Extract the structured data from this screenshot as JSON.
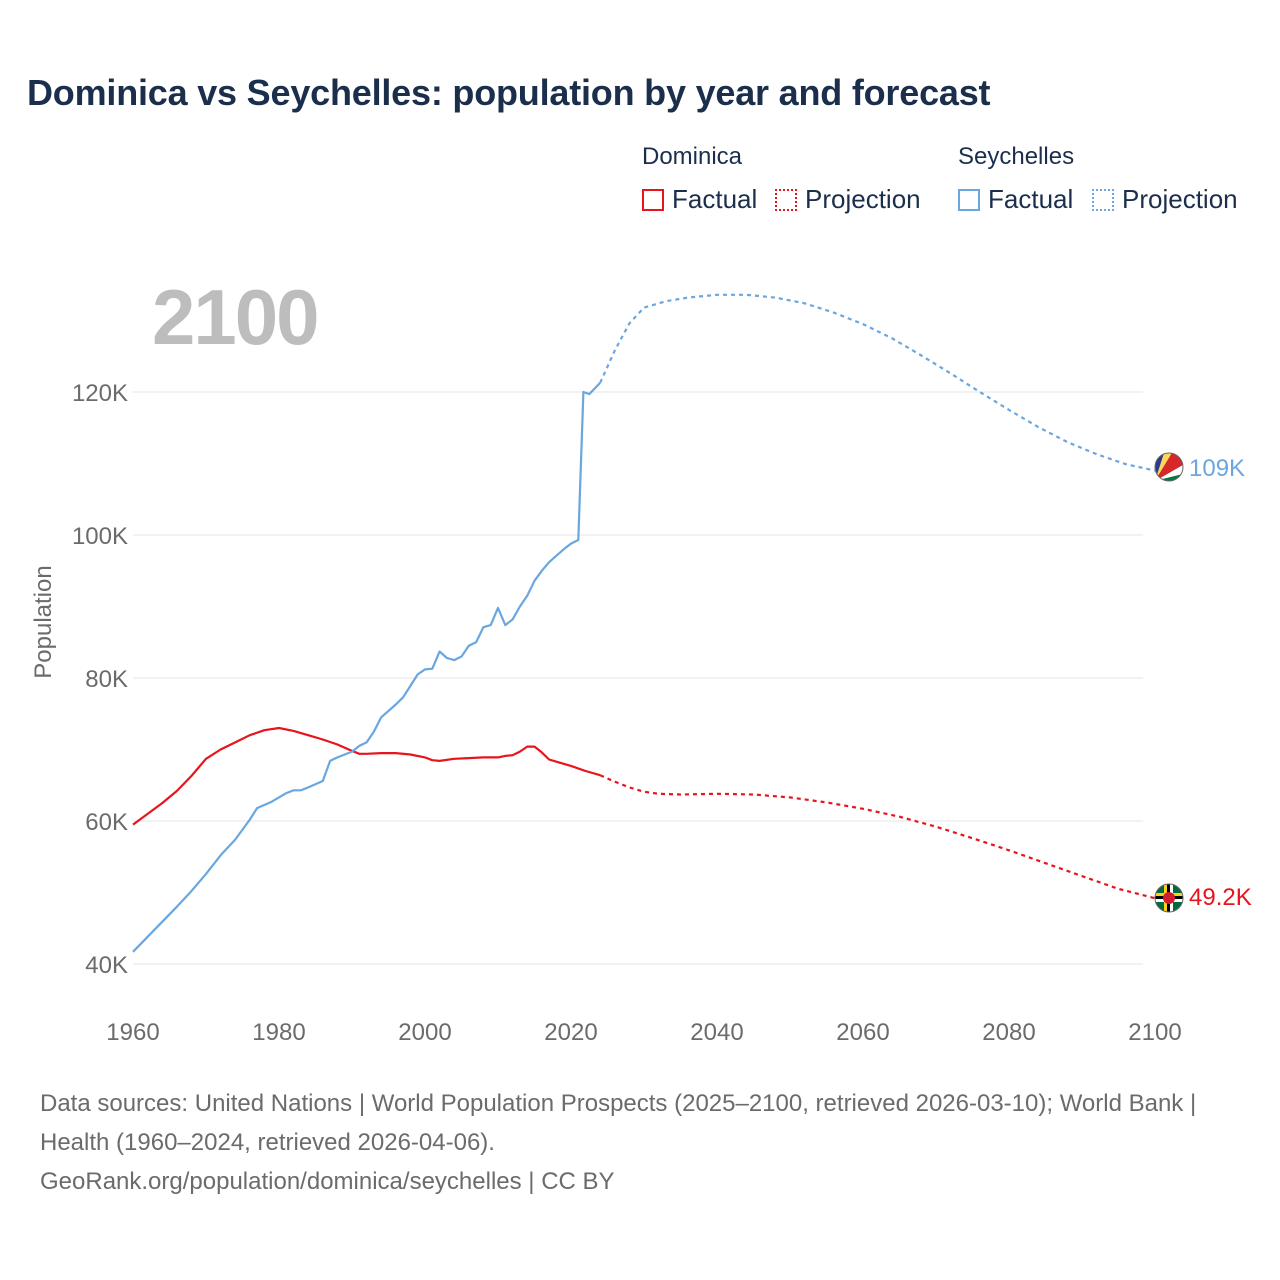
{
  "title": "Dominica vs Seychelles: population by year and forecast",
  "legend": {
    "groups": [
      {
        "name": "Dominica",
        "factual_label": "Factual",
        "projection_label": "Projection",
        "color": "#e8141c"
      },
      {
        "name": "Seychelles",
        "factual_label": "Factual",
        "projection_label": "Projection",
        "color": "#6aa6e0"
      }
    ]
  },
  "current_year_label": "2100",
  "end_labels": {
    "dominica": "49.2K",
    "seychelles": "109K"
  },
  "footer": {
    "sources": "Data sources: United Nations | World Population Prospects (2025–2100, retrieved 2026-03-10); World Bank | Health (1960–2024, retrieved 2026-04-06).",
    "credit": "GeoRank.org/population/dominica/seychelles | CC BY"
  },
  "chart_data": {
    "type": "line",
    "title": "Dominica vs Seychelles: population by year and forecast",
    "xlabel": "",
    "ylabel": "Population",
    "xlim": [
      1960,
      2100
    ],
    "ylim": [
      40000,
      130000
    ],
    "x_ticks": [
      1960,
      1980,
      2000,
      2020,
      2040,
      2060,
      2080,
      2100
    ],
    "x_tick_labels": [
      "1960",
      "1980",
      "2000",
      "2020",
      "2040",
      "2060",
      "2080",
      "2100"
    ],
    "y_ticks": [
      40000,
      60000,
      80000,
      100000,
      120000
    ],
    "y_tick_labels": [
      "40K",
      "60K",
      "80K",
      "100K",
      "120K"
    ],
    "grid": true,
    "series": [
      {
        "name": "Dominica",
        "kind": "Factual",
        "color": "#e8141c",
        "dash": "solid",
        "points": [
          [
            1960,
            59500
          ],
          [
            1962,
            61000
          ],
          [
            1964,
            62500
          ],
          [
            1966,
            64200
          ],
          [
            1968,
            66300
          ],
          [
            1970,
            68700
          ],
          [
            1972,
            70000
          ],
          [
            1974,
            71000
          ],
          [
            1976,
            72000
          ],
          [
            1978,
            72700
          ],
          [
            1980,
            73000
          ],
          [
            1982,
            72600
          ],
          [
            1984,
            72000
          ],
          [
            1986,
            71400
          ],
          [
            1988,
            70700
          ],
          [
            1990,
            69800
          ],
          [
            1991,
            69400
          ],
          [
            1992,
            69400
          ],
          [
            1994,
            69500
          ],
          [
            1996,
            69500
          ],
          [
            1998,
            69300
          ],
          [
            2000,
            68900
          ],
          [
            2001,
            68500
          ],
          [
            2002,
            68400
          ],
          [
            2004,
            68700
          ],
          [
            2006,
            68800
          ],
          [
            2008,
            68900
          ],
          [
            2010,
            68900
          ],
          [
            2011,
            69100
          ],
          [
            2012,
            69200
          ],
          [
            2013,
            69700
          ],
          [
            2014,
            70400
          ],
          [
            2015,
            70400
          ],
          [
            2016,
            69600
          ],
          [
            2017,
            68600
          ],
          [
            2018,
            68300
          ],
          [
            2020,
            67700
          ],
          [
            2022,
            67000
          ],
          [
            2024,
            66400
          ]
        ]
      },
      {
        "name": "Dominica",
        "kind": "Projection",
        "color": "#e8141c",
        "dash": "dotted",
        "points": [
          [
            2024,
            66400
          ],
          [
            2026,
            65500
          ],
          [
            2028,
            64700
          ],
          [
            2030,
            64100
          ],
          [
            2032,
            63800
          ],
          [
            2035,
            63700
          ],
          [
            2040,
            63800
          ],
          [
            2045,
            63700
          ],
          [
            2050,
            63300
          ],
          [
            2055,
            62600
          ],
          [
            2060,
            61700
          ],
          [
            2065,
            60600
          ],
          [
            2070,
            59200
          ],
          [
            2075,
            57600
          ],
          [
            2080,
            55900
          ],
          [
            2085,
            54100
          ],
          [
            2090,
            52300
          ],
          [
            2095,
            50500
          ],
          [
            2100,
            49200
          ]
        ]
      },
      {
        "name": "Seychelles",
        "kind": "Factual",
        "color": "#6aa6e0",
        "dash": "solid",
        "points": [
          [
            1960,
            41700
          ],
          [
            1962,
            43800
          ],
          [
            1964,
            45900
          ],
          [
            1966,
            48000
          ],
          [
            1968,
            50200
          ],
          [
            1970,
            52600
          ],
          [
            1972,
            55200
          ],
          [
            1974,
            57400
          ],
          [
            1976,
            60200
          ],
          [
            1977,
            61800
          ],
          [
            1979,
            62700
          ],
          [
            1981,
            63900
          ],
          [
            1982,
            64300
          ],
          [
            1983,
            64300
          ],
          [
            1984,
            64700
          ],
          [
            1986,
            65600
          ],
          [
            1987,
            68400
          ],
          [
            1988,
            68900
          ],
          [
            1989,
            69300
          ],
          [
            1990,
            69700
          ],
          [
            1991,
            70500
          ],
          [
            1992,
            71000
          ],
          [
            1993,
            72500
          ],
          [
            1994,
            74500
          ],
          [
            1996,
            76300
          ],
          [
            1997,
            77300
          ],
          [
            1998,
            78900
          ],
          [
            1999,
            80500
          ],
          [
            2000,
            81200
          ],
          [
            2001,
            81300
          ],
          [
            2002,
            83700
          ],
          [
            2003,
            82800
          ],
          [
            2004,
            82500
          ],
          [
            2005,
            83000
          ],
          [
            2006,
            84500
          ],
          [
            2007,
            85000
          ],
          [
            2008,
            87100
          ],
          [
            2009,
            87400
          ],
          [
            2010,
            89800
          ],
          [
            2011,
            87400
          ],
          [
            2012,
            88200
          ],
          [
            2013,
            90000
          ],
          [
            2014,
            91500
          ],
          [
            2015,
            93600
          ],
          [
            2016,
            95000
          ],
          [
            2017,
            96200
          ],
          [
            2018,
            97100
          ],
          [
            2019,
            98000
          ],
          [
            2020,
            98800
          ],
          [
            2021,
            99300
          ],
          [
            2021.7,
            120000
          ],
          [
            2022.5,
            119700
          ],
          [
            2024,
            121300
          ]
        ]
      },
      {
        "name": "Seychelles",
        "kind": "Projection",
        "color": "#6aa6e0",
        "dash": "dotted",
        "points": [
          [
            2024,
            121300
          ],
          [
            2026,
            125800
          ],
          [
            2028,
            129600
          ],
          [
            2030,
            131800
          ],
          [
            2033,
            132700
          ],
          [
            2036,
            133200
          ],
          [
            2040,
            133600
          ],
          [
            2044,
            133600
          ],
          [
            2048,
            133200
          ],
          [
            2052,
            132400
          ],
          [
            2056,
            131100
          ],
          [
            2060,
            129500
          ],
          [
            2064,
            127500
          ],
          [
            2068,
            125100
          ],
          [
            2072,
            122600
          ],
          [
            2076,
            120000
          ],
          [
            2080,
            117500
          ],
          [
            2084,
            115100
          ],
          [
            2088,
            113000
          ],
          [
            2092,
            111300
          ],
          [
            2096,
            109900
          ],
          [
            2100,
            109000
          ]
        ]
      }
    ]
  }
}
